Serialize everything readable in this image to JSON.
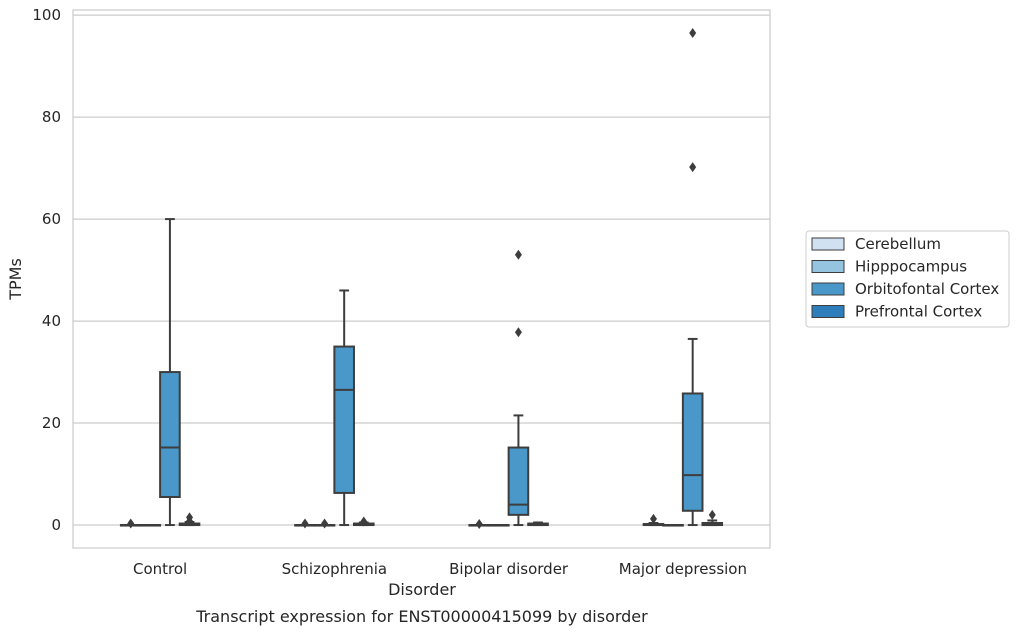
{
  "caption": "Transcript expression for ENST00000415099 by disorder",
  "chart_data": {
    "type": "box",
    "xlabel": "Disorder",
    "ylabel": "TPMs",
    "categories": [
      "Control",
      "Schizophrenia",
      "Bipolar disorder",
      "Major depression"
    ],
    "ylim": [
      -4.5,
      101
    ],
    "yticks": [
      0,
      20,
      40,
      60,
      80,
      100
    ],
    "grid": "horizontal",
    "legend_position": "right",
    "series": [
      {
        "name": "Cerebellum",
        "color": "#d0e1f2",
        "boxes": [
          {
            "min": 0,
            "q1": 0,
            "median": 0,
            "q3": 0,
            "max": 0,
            "outliers": [
              0.3
            ]
          },
          {
            "min": 0,
            "q1": 0,
            "median": 0,
            "q3": 0,
            "max": 0,
            "outliers": [
              0.3
            ]
          },
          {
            "min": 0,
            "q1": 0,
            "median": 0,
            "q3": 0,
            "max": 0,
            "outliers": [
              0.2
            ]
          },
          {
            "min": 0,
            "q1": 0,
            "median": 0,
            "q3": 0.2,
            "max": 0.4,
            "outliers": [
              1.2
            ]
          }
        ]
      },
      {
        "name": "Hipppocampus",
        "color": "#94c4df",
        "boxes": [
          {
            "min": 0,
            "q1": 0,
            "median": 0,
            "q3": 0,
            "max": 0,
            "outliers": []
          },
          {
            "min": 0,
            "q1": 0,
            "median": 0,
            "q3": 0,
            "max": 0,
            "outliers": [
              0.3
            ]
          },
          {
            "min": 0,
            "q1": 0,
            "median": 0,
            "q3": 0,
            "max": 0,
            "outliers": []
          },
          {
            "min": 0,
            "q1": 0,
            "median": 0,
            "q3": 0,
            "max": 0,
            "outliers": []
          }
        ]
      },
      {
        "name": "Orbitofontal Cortex",
        "color": "#4a98c9",
        "boxes": [
          {
            "min": 0,
            "q1": 5.5,
            "median": 15.2,
            "q3": 30,
            "max": 60,
            "outliers": []
          },
          {
            "min": 0,
            "q1": 6.3,
            "median": 26.5,
            "q3": 35,
            "max": 46,
            "outliers": []
          },
          {
            "min": 0,
            "q1": 2,
            "median": 4,
            "q3": 15.2,
            "max": 21.5,
            "outliers": [
              37.8,
              53
            ]
          },
          {
            "min": 0,
            "q1": 2.8,
            "median": 9.8,
            "q3": 25.8,
            "max": 36.5,
            "outliers": [
              70.2,
              96.5
            ]
          }
        ]
      },
      {
        "name": "Prefrontal Cortex",
        "color": "#2e7ebc",
        "boxes": [
          {
            "min": 0,
            "q1": 0,
            "median": 0.1,
            "q3": 0.3,
            "max": 0.6,
            "outliers": [
              1.5,
              0.8
            ]
          },
          {
            "min": 0,
            "q1": 0,
            "median": 0.1,
            "q3": 0.3,
            "max": 0.5,
            "outliers": [
              0.7
            ]
          },
          {
            "min": 0,
            "q1": 0,
            "median": 0.1,
            "q3": 0.3,
            "max": 0.5,
            "outliers": []
          },
          {
            "min": 0,
            "q1": 0,
            "median": 0.1,
            "q3": 0.4,
            "max": 0.9,
            "outliers": [
              2
            ]
          }
        ]
      }
    ]
  }
}
